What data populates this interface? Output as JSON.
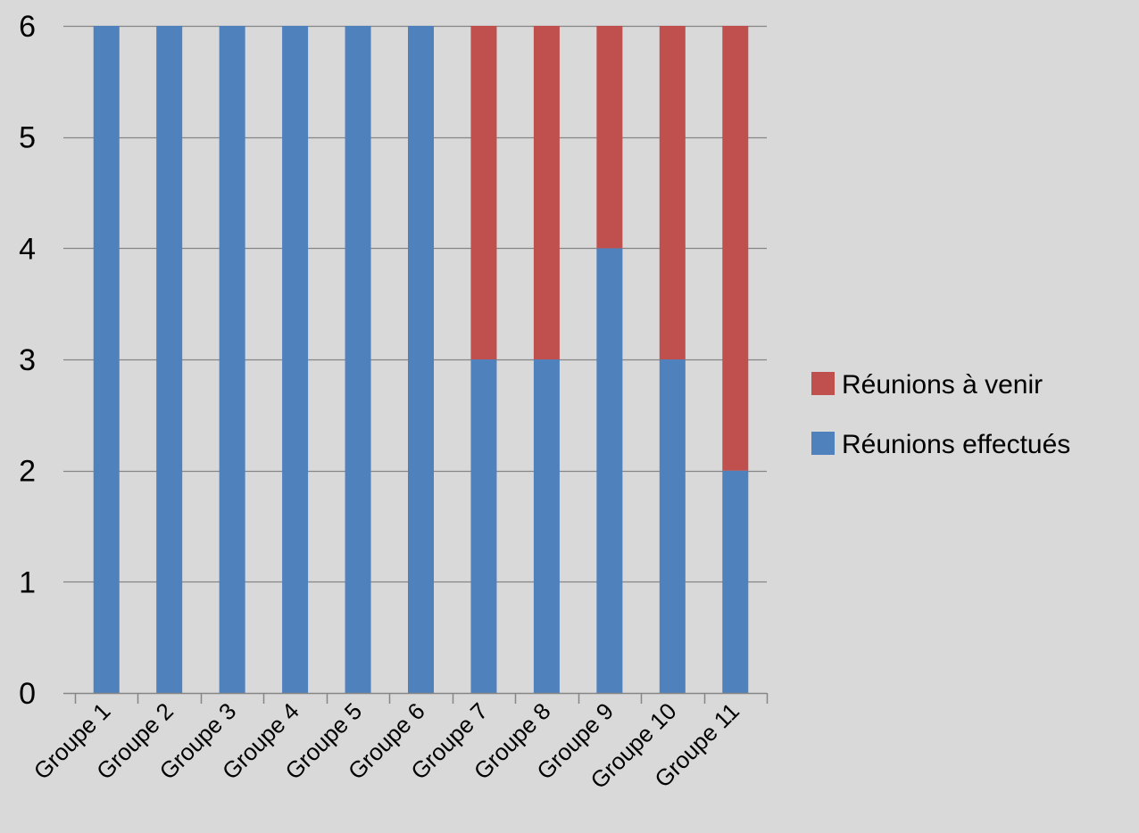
{
  "chart_data": {
    "type": "bar",
    "stacked": true,
    "title": "",
    "xlabel": "",
    "ylabel": "",
    "ylim": [
      0,
      6
    ],
    "yticks": [
      0,
      1,
      2,
      3,
      4,
      5,
      6
    ],
    "grid": true,
    "legend_position": "right",
    "categories": [
      "Groupe 1",
      "Groupe 2",
      "Groupe 3",
      "Groupe 4",
      "Groupe 5",
      "Groupe 6",
      "Groupe 7",
      "Groupe 8",
      "Groupe 9",
      "Groupe 10",
      "Groupe 11"
    ],
    "series": [
      {
        "name": "Réunions effectués",
        "color": "#4f81bd",
        "values": [
          6,
          6,
          6,
          6,
          6,
          6,
          3,
          3,
          4,
          3,
          2
        ]
      },
      {
        "name": "Réunions à venir",
        "color": "#c0504d",
        "values": [
          0,
          0,
          0,
          0,
          0,
          0,
          3,
          3,
          2,
          3,
          4
        ]
      }
    ],
    "legend_order": [
      1,
      0
    ]
  },
  "colors": {
    "background": "#d9d9d9",
    "gridline": "#868686",
    "axis": "#868686"
  }
}
